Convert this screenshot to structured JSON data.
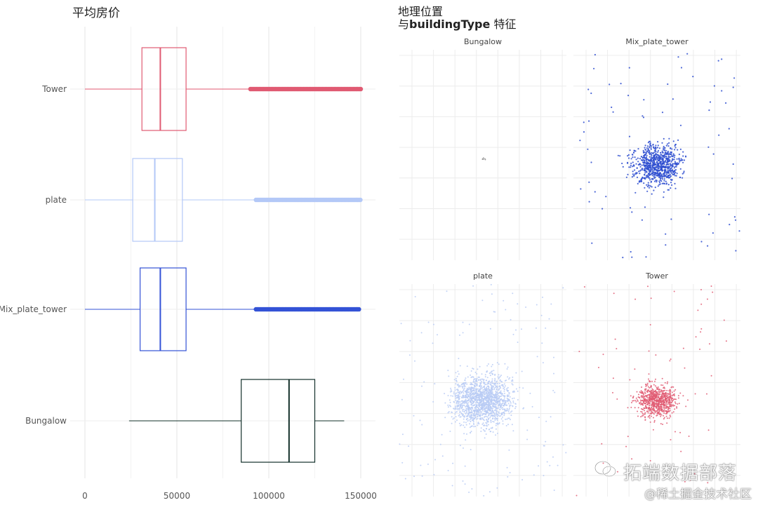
{
  "chart_data": [
    {
      "type": "boxplot",
      "title": "平均房价",
      "xlim": [
        0,
        150000
      ],
      "x_ticks": [
        0,
        50000,
        100000,
        150000
      ],
      "x_tick_labels": [
        "0",
        "50000",
        "100000",
        "150000"
      ],
      "categories": [
        "Tower",
        "plate",
        "Mix_plate_tower",
        "Bungalow"
      ],
      "boxes": [
        {
          "category": "Tower",
          "color": "#e05a72",
          "whisker_low": 0,
          "q1": 31000,
          "median": 41000,
          "q3": 55000,
          "whisker_high": 89000,
          "outliers_from": 90000,
          "outliers_to": 150000
        },
        {
          "category": "plate",
          "color": "#b3c8f7",
          "whisker_low": 0,
          "q1": 26000,
          "median": 38000,
          "q3": 53000,
          "whisker_high": 92000,
          "outliers_from": 93000,
          "outliers_to": 150000
        },
        {
          "category": "Mix_plate_tower",
          "color": "#3352d6",
          "whisker_low": 0,
          "q1": 30000,
          "median": 41000,
          "q3": 55000,
          "whisker_high": 92000,
          "outliers_from": 93000,
          "outliers_to": 149000
        },
        {
          "category": "Bungalow",
          "color": "#13302a",
          "whisker_low": 24000,
          "q1": 85000,
          "median": 111000,
          "q3": 125000,
          "whisker_high": 141000
        }
      ],
      "grid": true
    },
    {
      "type": "scatter",
      "title_line1": "地理位置",
      "title_line2_plain": "与",
      "title_line2_bold": "buildingType",
      "title_line2_tail": " 特征",
      "facets": [
        {
          "name": "Bungalow",
          "color": "#888888"
        },
        {
          "name": "Mix_plate_tower",
          "color": "#2f4fd0"
        },
        {
          "name": "plate",
          "color": "#b8cbf5"
        },
        {
          "name": "Tower",
          "color": "#e05a72"
        }
      ],
      "grid": true
    }
  ],
  "watermark": {
    "main": "拓端数据部落",
    "sub": "@稀土掘金技术社区"
  }
}
